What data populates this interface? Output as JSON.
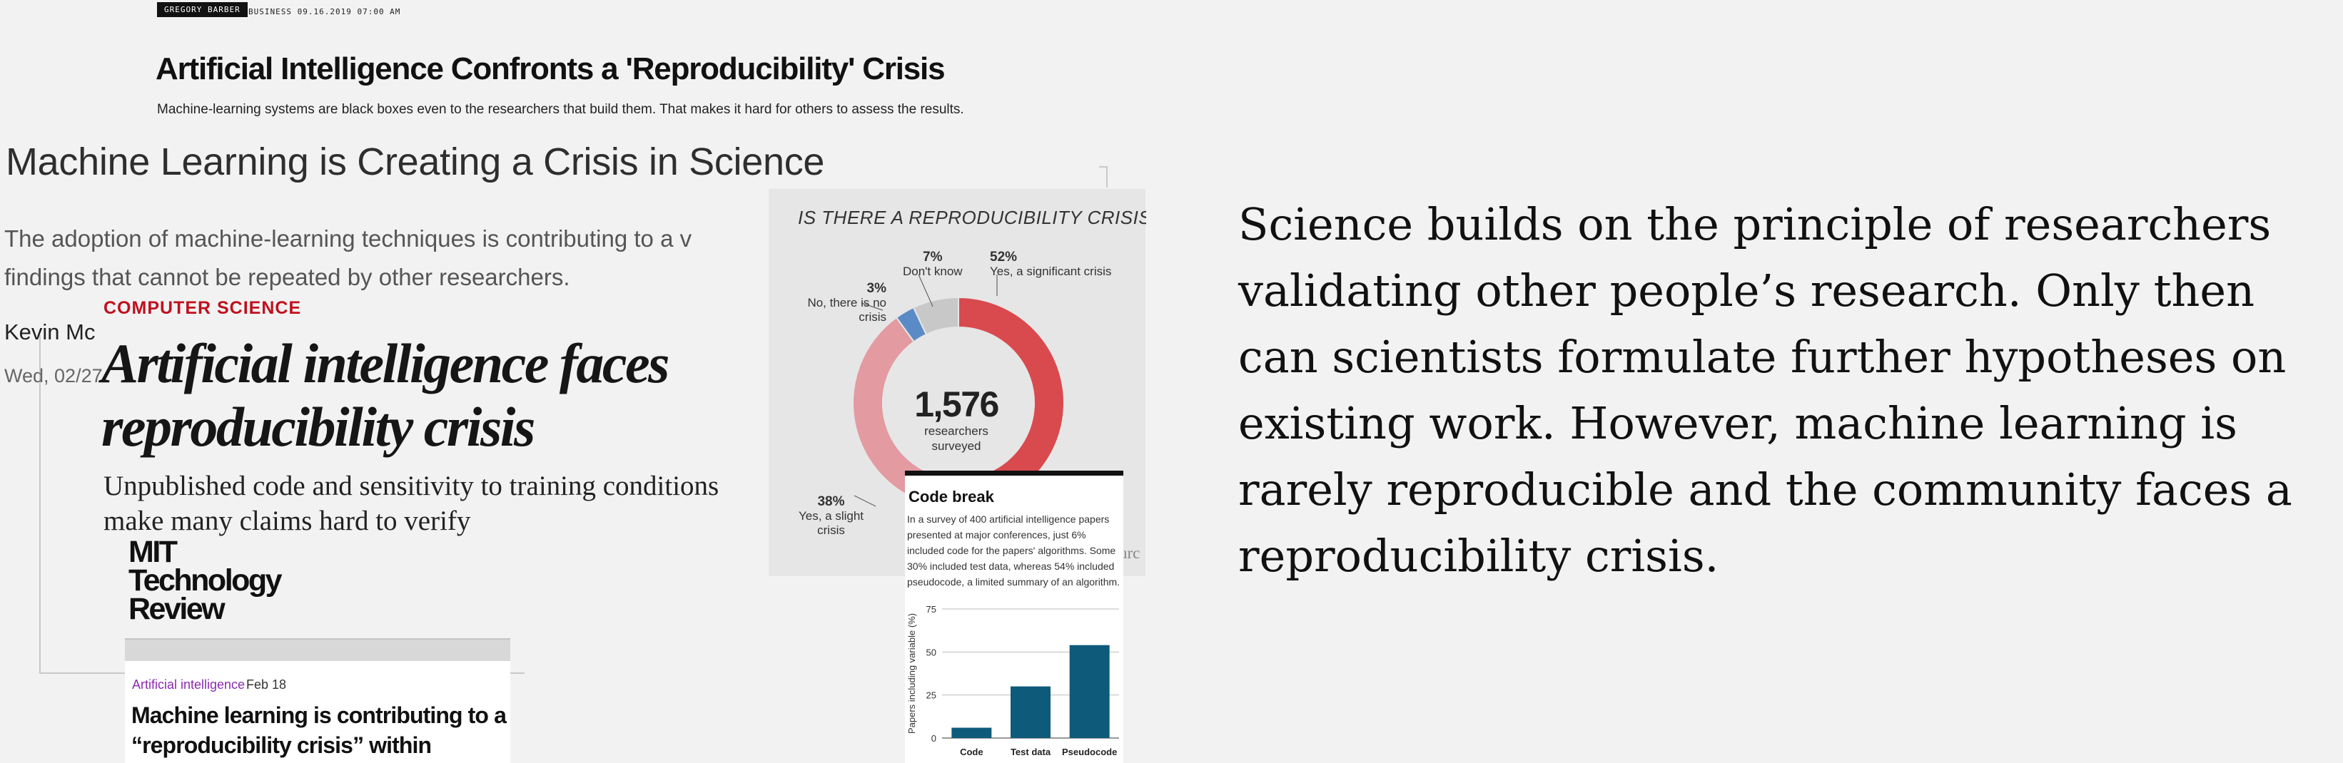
{
  "colors": {
    "background": "#f2f2f2",
    "nature_red": "#c0101e",
    "mit_purple": "#8b2bb0",
    "donut_significant": "#d94a4e",
    "donut_slight": "#e39aa0",
    "donut_no": "#5b8bc6",
    "donut_dont_know": "#c8c8c8",
    "bar_color": "#0e5a7a"
  },
  "collage": {
    "wired": {
      "author": "GREGORY BARBER",
      "meta": "BUSINESS   09.16.2019 07:00 AM",
      "title": "Artificial Intelligence Confronts a 'Reproducibility' Crisis",
      "dek": "Machine-learning systems are black boxes even to the researchers that build them. That makes it hard for others to assess the results."
    },
    "ml_article": {
      "title": "Machine Learning is Creating a Crisis in Science",
      "dek": "The adoption of machine-learning techniques is contributing to a v findings that cannot be repeated by other researchers.",
      "author": "Kevin Mc",
      "date": "Wed, 02/27"
    },
    "nature": {
      "kicker": "COMPUTER SCIENCE",
      "title": "Artificial intelligence faces reproducibility crisis",
      "dek": "Unpublished code and sensitivity to training conditions make many claims hard to verify",
      "sources_fragment": "urc"
    },
    "mit": {
      "logo": "MIT Technology Review",
      "tag": "Artificial intelligence",
      "date": "Feb 18",
      "title": "Machine learning is contributing to a “reproducibility crisis” within science"
    },
    "donut": {
      "question": "IS THERE A REPRODUCIBILITY CRISIS?",
      "total": "1,576",
      "total_label": "researchers surveyed",
      "segments": [
        {
          "pct": "52%",
          "label": "Yes, a significant crisis",
          "value": 52,
          "color": "#d94a4e"
        },
        {
          "pct": "38%",
          "label": "Yes, a slight crisis",
          "value": 38,
          "color": "#e39aa0"
        },
        {
          "pct": "3%",
          "label": "No, there is no crisis",
          "value": 3,
          "color": "#5b8bc6"
        },
        {
          "pct": "7%",
          "label": "Don't know",
          "value": 7,
          "color": "#c8c8c8"
        }
      ]
    },
    "code_break": {
      "title": "Code break",
      "body": "In a survey of 400 artificial intelligence papers presented at major conferences, just 6% included code for the papers' algorithms. Some 30% included test data, whereas 54% included pseudocode, a limited summary of an algorithm."
    }
  },
  "chart_data": {
    "type": "bar",
    "title": "",
    "xlabel": "",
    "ylabel": "Papers including variable (%)",
    "categories": [
      "Code",
      "Test data",
      "Pseudocode"
    ],
    "values": [
      6,
      30,
      54
    ],
    "ylim": [
      0,
      75
    ],
    "yticks": [
      0,
      25,
      50,
      75
    ],
    "grid": true
  },
  "main_text": "Science builds on the principle of researchers validating other people’s research. Only then can scientists formulate further hypotheses on existing work. However, machine learning is rarely reproducible and the community faces a reproducibility crisis."
}
